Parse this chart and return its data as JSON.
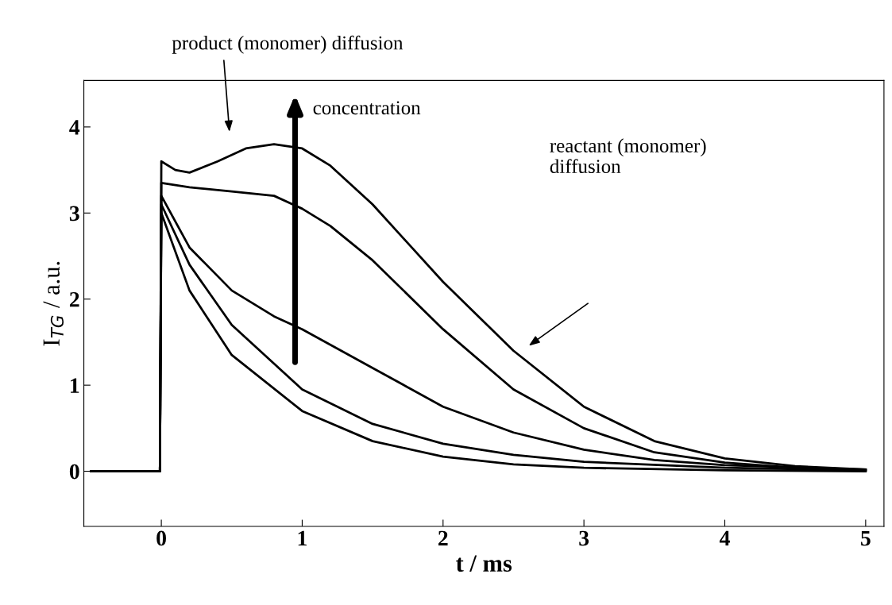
{
  "chart_data": {
    "type": "line",
    "xlabel": "t / ms",
    "ylabel": "I$_{TG}$ / a.u.",
    "xlim": [
      -0.55,
      5.13
    ],
    "ylim": [
      -0.64,
      4.54
    ],
    "xticks": [
      0,
      1,
      2,
      3,
      4,
      5
    ],
    "yticks": [
      0,
      1,
      2,
      3,
      4
    ],
    "grid": false,
    "legend": false,
    "marker": "none",
    "line_style": "solid",
    "series": [
      {
        "color": "#000000",
        "x": [
          -0.5,
          -0.01,
          0,
          0.1,
          0.2,
          0.4,
          0.6,
          0.8,
          1.0,
          1.2,
          1.5,
          2.0,
          2.5,
          3.0,
          3.5,
          4.0,
          4.5,
          5.0
        ],
        "values": [
          0,
          0,
          3.6,
          3.5,
          3.47,
          3.6,
          3.75,
          3.8,
          3.75,
          3.55,
          3.1,
          2.2,
          1.4,
          0.75,
          0.35,
          0.15,
          0.06,
          0.02
        ]
      },
      {
        "color": "#000000",
        "x": [
          -0.5,
          -0.01,
          0,
          0.2,
          0.5,
          0.8,
          1.0,
          1.2,
          1.5,
          2.0,
          2.5,
          3.0,
          3.5,
          4.0,
          4.5,
          5.0
        ],
        "values": [
          0,
          0,
          3.35,
          3.3,
          3.25,
          3.2,
          3.05,
          2.85,
          2.45,
          1.65,
          0.95,
          0.5,
          0.22,
          0.1,
          0.04,
          0.01
        ]
      },
      {
        "color": "#000000",
        "x": [
          -0.5,
          -0.01,
          0,
          0.2,
          0.5,
          0.8,
          1.0,
          1.5,
          2.0,
          2.5,
          3.0,
          3.5,
          4.0,
          5.0
        ],
        "values": [
          0,
          0,
          3.2,
          2.6,
          2.1,
          1.8,
          1.65,
          1.2,
          0.75,
          0.45,
          0.25,
          0.13,
          0.07,
          0.02
        ]
      },
      {
        "color": "#000000",
        "x": [
          -0.5,
          -0.01,
          0,
          0.2,
          0.5,
          1.0,
          1.5,
          2.0,
          2.5,
          3.0,
          4.0,
          5.0
        ],
        "values": [
          0,
          0,
          3.1,
          2.4,
          1.7,
          0.95,
          0.55,
          0.32,
          0.19,
          0.11,
          0.04,
          0.01
        ]
      },
      {
        "color": "#000000",
        "x": [
          -0.5,
          -0.01,
          0,
          0.2,
          0.5,
          1.0,
          1.5,
          2.0,
          2.5,
          3.0,
          4.0,
          5.0
        ],
        "values": [
          0,
          0,
          3.0,
          2.1,
          1.35,
          0.7,
          0.35,
          0.17,
          0.08,
          0.04,
          0.01,
          0
        ]
      }
    ],
    "annotations": [
      "product (monomer) diffusion",
      "concentration",
      "reactant (monomer)\ndiffusion"
    ]
  }
}
